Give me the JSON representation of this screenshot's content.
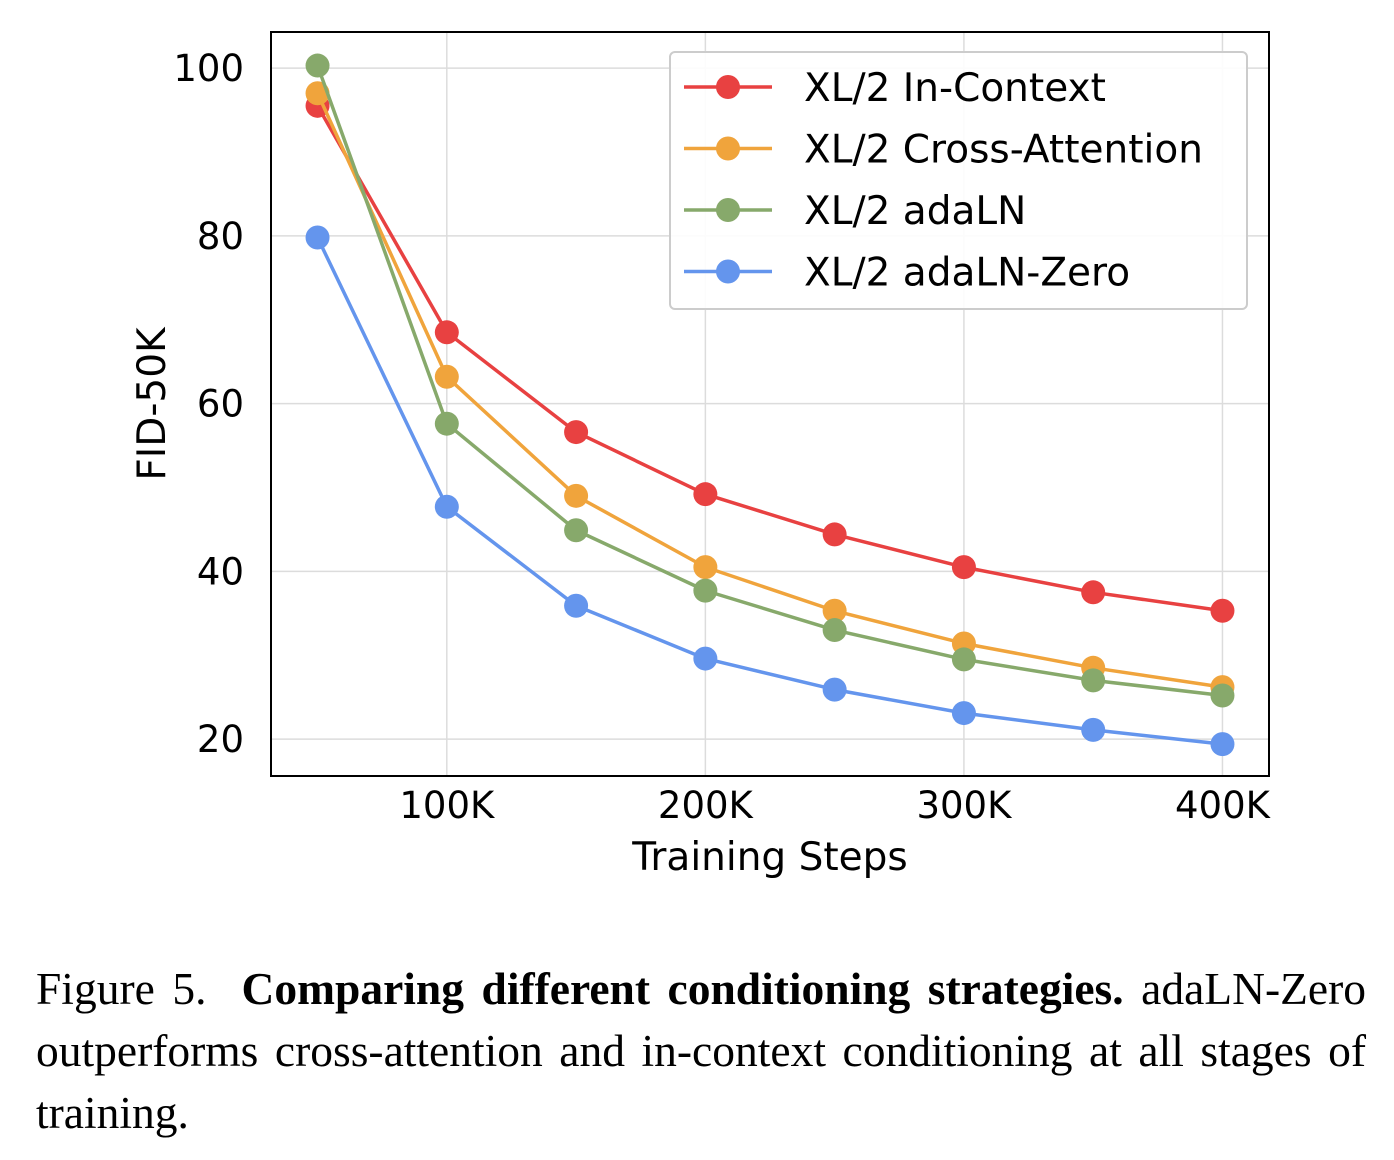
{
  "chart_data": {
    "type": "line",
    "xlabel": "Training Steps",
    "ylabel": "FID-50K",
    "x": [
      50000,
      100000,
      150000,
      200000,
      250000,
      300000,
      350000,
      400000
    ],
    "xticks": [
      100000,
      200000,
      300000,
      400000
    ],
    "xtick_labels": [
      "100K",
      "200K",
      "300K",
      "400K"
    ],
    "yticks": [
      20,
      40,
      60,
      80,
      100
    ],
    "ytick_labels": [
      "20",
      "40",
      "60",
      "80",
      "100"
    ],
    "xlim": [
      32000,
      418000
    ],
    "ylim": [
      15.6,
      104.3
    ],
    "grid": true,
    "legend_position": "top-right",
    "series": [
      {
        "name": "XL/2 In-Context",
        "color": "#e84141",
        "values": [
          95.5,
          68.5,
          56.6,
          49.2,
          44.4,
          40.5,
          37.5,
          35.3
        ]
      },
      {
        "name": "XL/2 Cross-Attention",
        "color": "#f0a43c",
        "values": [
          97.0,
          63.2,
          49.0,
          40.5,
          35.3,
          31.4,
          28.5,
          26.2
        ]
      },
      {
        "name": "XL/2 adaLN",
        "color": "#87a96b",
        "values": [
          100.3,
          57.6,
          44.9,
          37.7,
          33.0,
          29.5,
          27.0,
          25.2
        ]
      },
      {
        "name": "XL/2 adaLN-Zero",
        "color": "#6495ed",
        "values": [
          79.8,
          47.7,
          35.9,
          29.6,
          25.9,
          23.1,
          21.1,
          19.4
        ]
      }
    ]
  },
  "caption": {
    "label": "Figure 5.",
    "bold": "Comparing different conditioning strategies.",
    "text": "adaLN-Zero outperforms cross-attention and in-context conditioning at all stages of training."
  }
}
